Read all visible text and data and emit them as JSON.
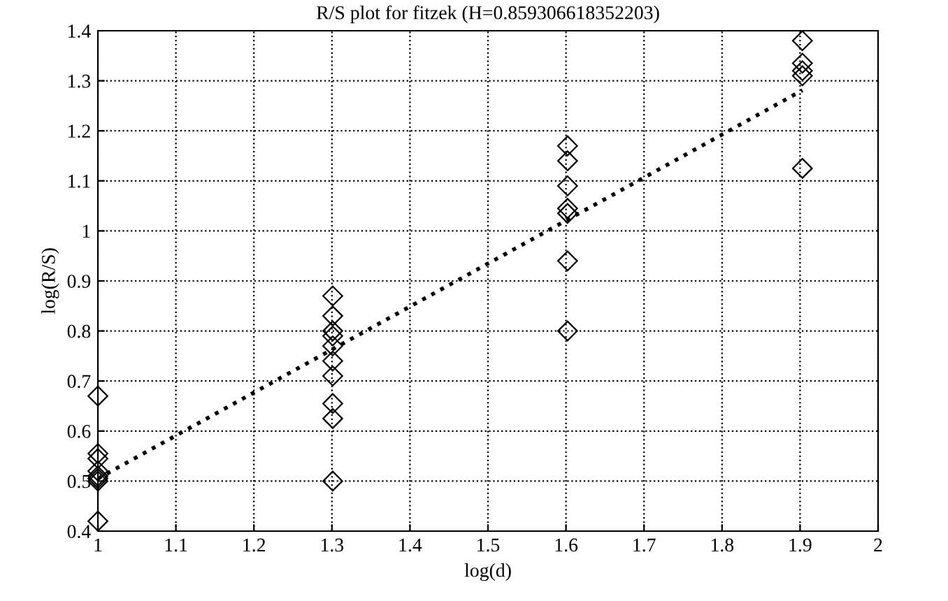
{
  "chart_data": {
    "type": "scatter",
    "title": "R/S plot for fitzek (H=0.859306618352203)",
    "xlabel": "log(d)",
    "ylabel": "log(R/S)",
    "series": [
      {
        "color": "#000000",
        "marker": "diamond",
        "x": [
          1,
          1,
          1,
          1,
          1,
          1,
          1,
          1,
          1.301,
          1.301,
          1.301,
          1.301,
          1.301,
          1.301,
          1.301,
          1.301,
          1.301,
          1.301,
          1.602,
          1.602,
          1.602,
          1.602,
          1.602,
          1.602,
          1.602,
          1.903,
          1.903,
          1.903,
          1.903,
          1.903
        ],
        "values": [
          0.67,
          0.555,
          0.545,
          0.52,
          0.51,
          0.505,
          0.5,
          0.42,
          0.87,
          0.83,
          0.8,
          0.79,
          0.77,
          0.74,
          0.71,
          0.655,
          0.625,
          0.5,
          1.17,
          1.14,
          1.09,
          1.045,
          1.035,
          0.94,
          0.8,
          1.38,
          1.335,
          1.32,
          1.31,
          1.125
        ]
      },
      {
        "type": "line",
        "color": "#000000",
        "line_style": "dotted",
        "marker": "none",
        "x": [
          1,
          1.903
        ],
        "values": [
          0.505,
          1.281
        ]
      }
    ],
    "xlim": [
      1,
      2
    ],
    "xticks": [
      1,
      1.1,
      1.2,
      1.3,
      1.4,
      1.5,
      1.6,
      1.7,
      1.8,
      1.9,
      2
    ],
    "ylim": [
      0.4,
      1.4
    ],
    "yticks": [
      0.4,
      0.5,
      0.6,
      0.7,
      0.8,
      0.9,
      1,
      1.1,
      1.2,
      1.3,
      1.4
    ],
    "grid": true
  }
}
